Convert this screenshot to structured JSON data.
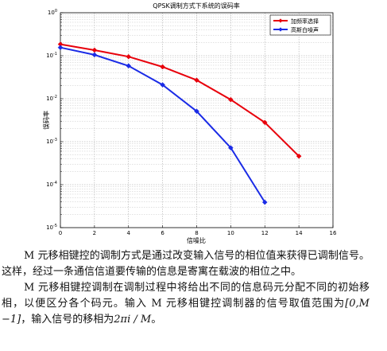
{
  "chart_data": {
    "type": "line",
    "title": "QPSK调制方式下系统的误码率",
    "xlabel": "信噪比",
    "ylabel": "误码率",
    "xlim": [
      0,
      16
    ],
    "ylim": [
      1e-05,
      1
    ],
    "y_scale": "log",
    "grid": true,
    "legend_position": "top-right",
    "x_ticks": [
      "0",
      "2",
      "4",
      "6",
      "8",
      "10",
      "12",
      "14",
      "16"
    ],
    "y_ticks": [
      {
        "base": "10",
        "exp": "0"
      },
      {
        "base": "10",
        "exp": "-1"
      },
      {
        "base": "10",
        "exp": "-2"
      },
      {
        "base": "10",
        "exp": "-3"
      },
      {
        "base": "10",
        "exp": "-4"
      },
      {
        "base": "10",
        "exp": "-5"
      }
    ],
    "series": [
      {
        "name": "加频率选择",
        "color": "#e8000b",
        "marker": "diamond",
        "x": [
          0,
          2,
          4,
          6,
          8,
          10,
          12,
          14
        ],
        "y": [
          0.185,
          0.135,
          0.095,
          0.055,
          0.027,
          0.0095,
          0.0028,
          0.00046
        ]
      },
      {
        "name": "高斯白噪声",
        "color": "#1a2be6",
        "marker": "diamond",
        "x": [
          0,
          2,
          4,
          6,
          8,
          10,
          12
        ],
        "y": [
          0.155,
          0.105,
          0.058,
          0.021,
          0.0051,
          0.00072,
          3.9e-05
        ]
      }
    ]
  },
  "text": {
    "p1": "M 元移相键控的调制方式是通过改变输入信号的相位值来获得已调制信号。这样，经过一条通信信道要传输的信息是寄寓在载波的相位之中。",
    "p2_a": "M 元移相键控调制在调制过程中将给出不同的信息码元分配不同的初始移相，以便区分各个码元。输入 M 元移相键控调制器的信号取值范围为",
    "p2_range": "[0,M −1]",
    "p2_b": "，输入信号的移相为",
    "p2_phase": "2πi / M",
    "p2_end": "。"
  }
}
